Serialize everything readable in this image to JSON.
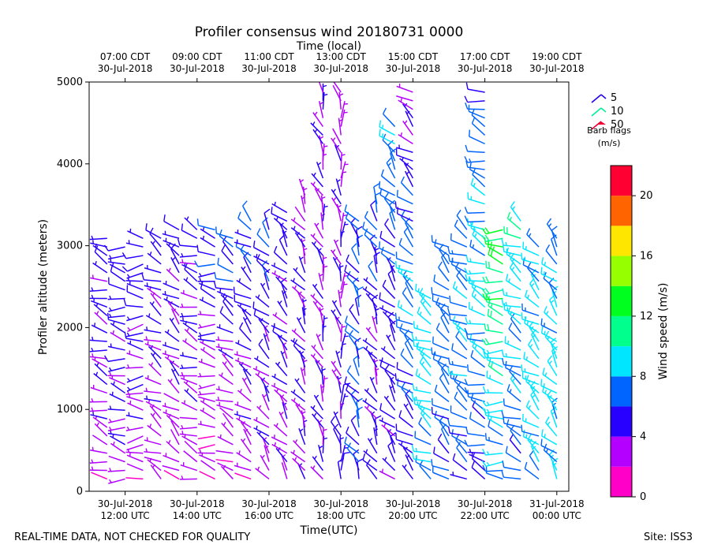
{
  "chart_data": {
    "type": "wind_barb_profile",
    "title": "Profiler consensus wind 20180731 0000",
    "top_axis_label": "Time (local)",
    "xlabel": "Time(UTC)",
    "ylabel": "Profiler altitude (meters)",
    "xlim_hours_utc": [
      11.0,
      24.333
    ],
    "ylim": [
      0,
      5000
    ],
    "yticks": [
      0,
      1000,
      2000,
      3000,
      4000,
      5000
    ],
    "bottom_ticks": [
      {
        "hour": 12,
        "line1": "30-Jul-2018",
        "line2": "12:00 UTC"
      },
      {
        "hour": 14,
        "line1": "30-Jul-2018",
        "line2": "14:00 UTC"
      },
      {
        "hour": 16,
        "line1": "30-Jul-2018",
        "line2": "16:00 UTC"
      },
      {
        "hour": 18,
        "line1": "30-Jul-2018",
        "line2": "18:00 UTC"
      },
      {
        "hour": 20,
        "line1": "30-Jul-2018",
        "line2": "20:00 UTC"
      },
      {
        "hour": 22,
        "line1": "30-Jul-2018",
        "line2": "22:00 UTC"
      },
      {
        "hour": 24,
        "line1": "31-Jul-2018",
        "line2": "00:00 UTC"
      }
    ],
    "top_ticks": [
      {
        "hour": 12,
        "line1": "07:00 CDT",
        "line2": "30-Jul-2018"
      },
      {
        "hour": 14,
        "line1": "09:00 CDT",
        "line2": "30-Jul-2018"
      },
      {
        "hour": 16,
        "line1": "11:00 CDT",
        "line2": "30-Jul-2018"
      },
      {
        "hour": 18,
        "line1": "13:00 CDT",
        "line2": "30-Jul-2018"
      },
      {
        "hour": 20,
        "line1": "15:00 CDT",
        "line2": "30-Jul-2018"
      },
      {
        "hour": 22,
        "line1": "17:00 CDT",
        "line2": "30-Jul-2018"
      },
      {
        "hour": 24,
        "line1": "19:00 CDT",
        "line2": "30-Jul-2018"
      }
    ],
    "barb_legend": {
      "title_line1": "Barb flags",
      "title_line2": "(m/s)",
      "entries": [
        {
          "label": "5",
          "color": "#2200ee"
        },
        {
          "label": "10",
          "color": "#00ee99"
        },
        {
          "label": "50",
          "color": "#ee0033"
        }
      ]
    },
    "colorbar": {
      "label": "Wind speed (m/s)",
      "min": 0,
      "max": 22,
      "bounds": [
        0,
        2,
        4,
        6,
        8,
        10,
        12,
        14,
        16,
        18,
        20,
        22
      ],
      "colors": [
        "#ff00c8",
        "#b400ff",
        "#2800ff",
        "#0064ff",
        "#00e6ff",
        "#00ff8c",
        "#00ff1e",
        "#96ff00",
        "#ffe600",
        "#ff6400",
        "#ff0032"
      ],
      "ticks": [
        0,
        4,
        8,
        12,
        16,
        20
      ]
    },
    "profiles": [
      {
        "t": 11.0,
        "top": 3150,
        "lowSpd": 3,
        "midSpd": 5,
        "highSpd": 5,
        "dir": 300
      },
      {
        "t": 11.5,
        "top": 3100,
        "lowSpd": 2.5,
        "midSpd": 4,
        "highSpd": 5,
        "dir": 290
      },
      {
        "t": 12.0,
        "top": 3050,
        "lowSpd": 3,
        "midSpd": 4.5,
        "highSpd": 5,
        "dir": 280
      },
      {
        "t": 12.5,
        "top": 3100,
        "lowSpd": 2,
        "midSpd": 4.5,
        "highSpd": 5,
        "dir": 270
      },
      {
        "t": 13.0,
        "top": 3100,
        "lowSpd": 2.5,
        "midSpd": 4,
        "highSpd": 5,
        "dir": 300
      },
      {
        "t": 13.5,
        "top": 3250,
        "lowSpd": 2,
        "midSpd": 4,
        "highSpd": 5,
        "dir": 310
      },
      {
        "t": 14.0,
        "top": 3250,
        "lowSpd": 2.5,
        "midSpd": 4,
        "highSpd": 5,
        "dir": 290
      },
      {
        "t": 14.5,
        "top": 3250,
        "lowSpd": 2,
        "midSpd": 3.5,
        "highSpd": 6,
        "dir": 280
      },
      {
        "t": 15.0,
        "top": 3150,
        "lowSpd": 2,
        "midSpd": 3.5,
        "highSpd": 7,
        "dir": 300
      },
      {
        "t": 15.5,
        "top": 3350,
        "lowSpd": 2.5,
        "midSpd": 4.5,
        "highSpd": 6,
        "dir": 310
      },
      {
        "t": 16.0,
        "top": 3200,
        "lowSpd": 3,
        "midSpd": 4.5,
        "highSpd": 6,
        "dir": 320
      },
      {
        "t": 16.5,
        "top": 3450,
        "lowSpd": 3,
        "midSpd": 4.5,
        "highSpd": 5,
        "dir": 320
      },
      {
        "t": 17.0,
        "top": 3650,
        "lowSpd": 3.5,
        "midSpd": 4.5,
        "highSpd": 3,
        "dir": 330
      },
      {
        "t": 17.5,
        "top": 4950,
        "lowSpd": 4.5,
        "midSpd": 3.5,
        "highSpd": 4,
        "dir": 340
      },
      {
        "t": 18.0,
        "top": 4950,
        "lowSpd": 5,
        "midSpd": 4,
        "highSpd": 3,
        "dir": 350
      },
      {
        "t": 18.5,
        "top": 3300,
        "lowSpd": 6,
        "midSpd": 6.5,
        "highSpd": 6,
        "dir": 330
      },
      {
        "t": 19.0,
        "top": 3600,
        "lowSpd": 5,
        "midSpd": 4,
        "highSpd": 7,
        "dir": 330
      },
      {
        "t": 19.5,
        "top": 4500,
        "lowSpd": 4.5,
        "midSpd": 5,
        "highSpd": 8,
        "dir": 320
      },
      {
        "t": 20.0,
        "top": 4950,
        "lowSpd": 4,
        "midSpd": 8,
        "highSpd": 3,
        "dir": 310
      },
      {
        "t": 20.5,
        "top": 2400,
        "lowSpd": 7,
        "midSpd": 9,
        "highSpd": 9,
        "dir": 300
      },
      {
        "t": 21.0,
        "top": 3000,
        "lowSpd": 6,
        "midSpd": 7,
        "highSpd": 7,
        "dir": 310
      },
      {
        "t": 21.5,
        "top": 3250,
        "lowSpd": 5.5,
        "midSpd": 8,
        "highSpd": 7,
        "dir": 300
      },
      {
        "t": 22.0,
        "top": 4900,
        "lowSpd": 5,
        "midSpd": 9,
        "highSpd": 6,
        "dir": 290
      },
      {
        "t": 22.5,
        "top": 3200,
        "lowSpd": 7,
        "midSpd": 10,
        "highSpd": 13,
        "dir": 280
      },
      {
        "t": 23.0,
        "top": 3350,
        "lowSpd": 6,
        "midSpd": 8,
        "highSpd": 10,
        "dir": 300
      },
      {
        "t": 23.5,
        "top": 3000,
        "lowSpd": 8,
        "midSpd": 9,
        "highSpd": 8,
        "dir": 310
      },
      {
        "t": 24.0,
        "top": 3100,
        "lowSpd": 8,
        "midSpd": 9,
        "highSpd": 7,
        "dir": 320
      }
    ]
  },
  "footer": {
    "left": "REAL-TIME DATA, NOT CHECKED FOR QUALITY",
    "right": "Site: ISS3"
  }
}
